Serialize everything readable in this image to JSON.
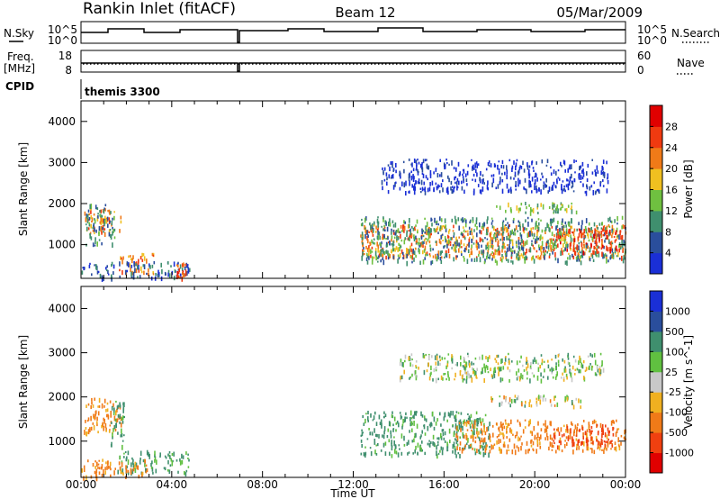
{
  "header": {
    "station": "Rankin Inlet (fitACF)",
    "beam": "Beam 12",
    "date": "05/Mar/2009"
  },
  "status_panels": {
    "nsky_label": "N.Sky",
    "nsky_ticks": [
      "10^5",
      "10^0"
    ],
    "nsearch_label": "N.Search",
    "nsearch_ticks": [
      "10^5",
      "10^0"
    ],
    "freq_label_1": "Freq.",
    "freq_label_2": "[MHz]",
    "freq_ticks": [
      "18",
      "8"
    ],
    "nave_label": "Nave",
    "nave_ticks": [
      "60",
      "0"
    ],
    "cpid_label": "CPID",
    "cpid_value": "themis 3300"
  },
  "colors": {
    "power_scale": [
      "#1a2fd6",
      "#2a4e9c",
      "#3f8f6e",
      "#6fc040",
      "#f0c020",
      "#f07a18",
      "#f03a10",
      "#e00000"
    ],
    "velocity_scale": [
      "#e00000",
      "#f04010",
      "#f07a18",
      "#f0b020",
      "#c8c8c8",
      "#60c040",
      "#3f8f6e",
      "#2a4e9c",
      "#1a2fd6"
    ]
  },
  "chart_data": [
    {
      "type": "heatmap",
      "panel": "power",
      "ylabel": "Slant Range [km]",
      "ylim": [
        180,
        4500
      ],
      "yticks": [
        "1000",
        "2000",
        "3000",
        "4000"
      ],
      "xticks": [
        "00:00",
        "04:00",
        "08:00",
        "12:00",
        "16:00",
        "20:00",
        "00:00"
      ],
      "x_range_hours": [
        0,
        24
      ],
      "colorbar_label": "Power [dB]",
      "colorbar_ticks": [
        "4",
        "8",
        "12",
        "16",
        "20",
        "24",
        "28"
      ],
      "regions": [
        {
          "t0": 0.1,
          "t1": 1.8,
          "r0": 1300,
          "r1": 1900,
          "level": 24
        },
        {
          "t0": 0.2,
          "t1": 1.5,
          "r0": 1000,
          "r1": 2000,
          "level": 12
        },
        {
          "t0": 1.6,
          "t1": 3.2,
          "r0": 300,
          "r1": 800,
          "level": 24
        },
        {
          "t0": 0.0,
          "t1": 4.8,
          "r0": 200,
          "r1": 600,
          "level": 8
        },
        {
          "t0": 4.2,
          "t1": 4.6,
          "r0": 200,
          "r1": 600,
          "level": 28
        },
        {
          "t0": 12.3,
          "t1": 24.0,
          "r0": 700,
          "r1": 1500,
          "level": 24
        },
        {
          "t0": 12.3,
          "t1": 24.0,
          "r0": 600,
          "r1": 1700,
          "level": 12
        },
        {
          "t0": 20.8,
          "t1": 23.8,
          "r0": 800,
          "r1": 1400,
          "level": 28
        },
        {
          "t0": 13.2,
          "t1": 23.2,
          "r0": 2300,
          "r1": 3100,
          "level": 4
        },
        {
          "t0": 18.2,
          "t1": 22.0,
          "r0": 1800,
          "r1": 2050,
          "level": 16
        }
      ]
    },
    {
      "type": "heatmap",
      "panel": "velocity",
      "xlabel": "Time UT",
      "ylabel": "Slant Range [km]",
      "ylim": [
        180,
        4500
      ],
      "yticks": [
        "1000",
        "2000",
        "3000",
        "4000"
      ],
      "xticks": [
        "00:00",
        "04:00",
        "08:00",
        "12:00",
        "16:00",
        "20:00",
        "00:00"
      ],
      "x_range_hours": [
        0,
        24
      ],
      "colorbar_label": "Velocity [m s^-1]",
      "colorbar_ticks": [
        "1000",
        "500",
        "100",
        "25",
        "-25",
        "-100",
        "-500",
        "-1000"
      ],
      "regions": [
        {
          "t0": 0.1,
          "t1": 1.8,
          "r0": 1200,
          "r1": 2000,
          "level": -100
        },
        {
          "t0": 1.3,
          "t1": 1.9,
          "r0": 900,
          "r1": 2000,
          "level": 100
        },
        {
          "t0": 1.6,
          "t1": 4.8,
          "r0": 300,
          "r1": 800,
          "level": 100
        },
        {
          "t0": 0.0,
          "t1": 3.0,
          "r0": 200,
          "r1": 600,
          "level": -100
        },
        {
          "t0": 12.3,
          "t1": 18.0,
          "r0": 700,
          "r1": 1700,
          "level": 100
        },
        {
          "t0": 16.5,
          "t1": 24.0,
          "r0": 800,
          "r1": 1500,
          "level": -100
        },
        {
          "t0": 20.8,
          "t1": 23.5,
          "r0": 900,
          "r1": 1400,
          "level": -500
        },
        {
          "t0": 14.0,
          "t1": 23.0,
          "r0": 2400,
          "r1": 3000,
          "level": 25
        },
        {
          "t0": 18.0,
          "t1": 22.0,
          "r0": 1800,
          "r1": 2050,
          "level": 0
        }
      ]
    }
  ]
}
